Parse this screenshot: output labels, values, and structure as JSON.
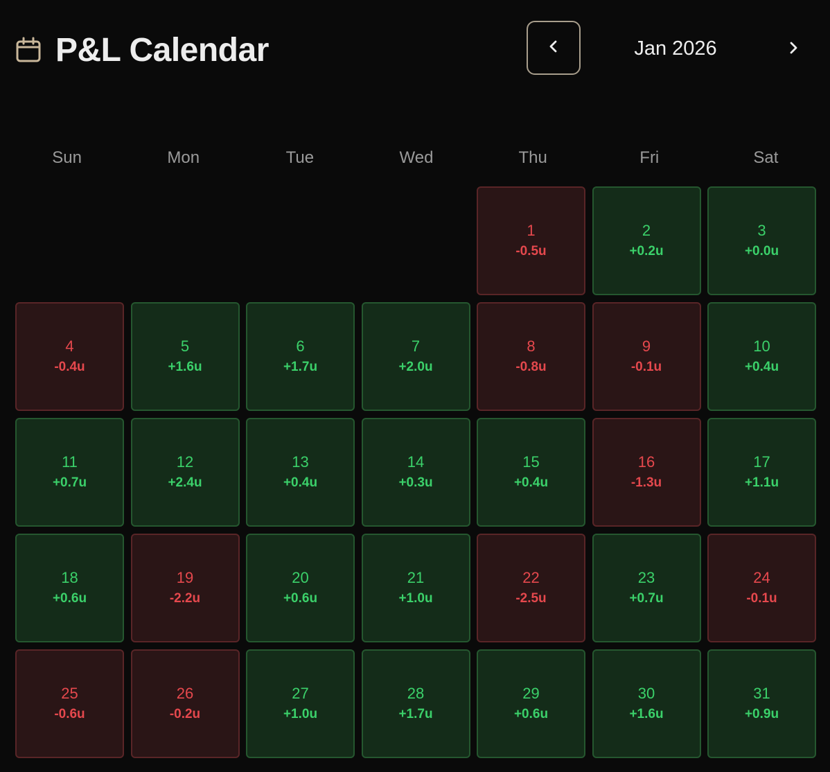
{
  "header": {
    "title": "P&L Calendar",
    "month": "Jan 2026",
    "calendar_icon": "calendar-icon",
    "prev_icon": "chevron-left-icon",
    "next_icon": "chevron-right-icon"
  },
  "weekdays": [
    "Sun",
    "Mon",
    "Tue",
    "Wed",
    "Thu",
    "Fri",
    "Sat"
  ],
  "colors": {
    "background": "#0a0a0a",
    "positive": "#3bd16a",
    "negative": "#e5484d",
    "positive_bg": "#142c19",
    "negative_bg": "#2a1516",
    "nav_border": "#a89e8c"
  },
  "leading_empty_days": 4,
  "days": [
    {
      "day": "1",
      "value": "-0.5u",
      "sign": "neg"
    },
    {
      "day": "2",
      "value": "+0.2u",
      "sign": "pos"
    },
    {
      "day": "3",
      "value": "+0.0u",
      "sign": "pos"
    },
    {
      "day": "4",
      "value": "-0.4u",
      "sign": "neg"
    },
    {
      "day": "5",
      "value": "+1.6u",
      "sign": "pos"
    },
    {
      "day": "6",
      "value": "+1.7u",
      "sign": "pos"
    },
    {
      "day": "7",
      "value": "+2.0u",
      "sign": "pos"
    },
    {
      "day": "8",
      "value": "-0.8u",
      "sign": "neg"
    },
    {
      "day": "9",
      "value": "-0.1u",
      "sign": "neg"
    },
    {
      "day": "10",
      "value": "+0.4u",
      "sign": "pos"
    },
    {
      "day": "11",
      "value": "+0.7u",
      "sign": "pos"
    },
    {
      "day": "12",
      "value": "+2.4u",
      "sign": "pos"
    },
    {
      "day": "13",
      "value": "+0.4u",
      "sign": "pos"
    },
    {
      "day": "14",
      "value": "+0.3u",
      "sign": "pos"
    },
    {
      "day": "15",
      "value": "+0.4u",
      "sign": "pos"
    },
    {
      "day": "16",
      "value": "-1.3u",
      "sign": "neg"
    },
    {
      "day": "17",
      "value": "+1.1u",
      "sign": "pos"
    },
    {
      "day": "18",
      "value": "+0.6u",
      "sign": "pos"
    },
    {
      "day": "19",
      "value": "-2.2u",
      "sign": "neg"
    },
    {
      "day": "20",
      "value": "+0.6u",
      "sign": "pos"
    },
    {
      "day": "21",
      "value": "+1.0u",
      "sign": "pos"
    },
    {
      "day": "22",
      "value": "-2.5u",
      "sign": "neg"
    },
    {
      "day": "23",
      "value": "+0.7u",
      "sign": "pos"
    },
    {
      "day": "24",
      "value": "-0.1u",
      "sign": "neg"
    },
    {
      "day": "25",
      "value": "-0.6u",
      "sign": "neg"
    },
    {
      "day": "26",
      "value": "-0.2u",
      "sign": "neg"
    },
    {
      "day": "27",
      "value": "+1.0u",
      "sign": "pos"
    },
    {
      "day": "28",
      "value": "+1.7u",
      "sign": "pos"
    },
    {
      "day": "29",
      "value": "+0.6u",
      "sign": "pos"
    },
    {
      "day": "30",
      "value": "+1.6u",
      "sign": "pos"
    },
    {
      "day": "31",
      "value": "+0.9u",
      "sign": "pos"
    }
  ]
}
